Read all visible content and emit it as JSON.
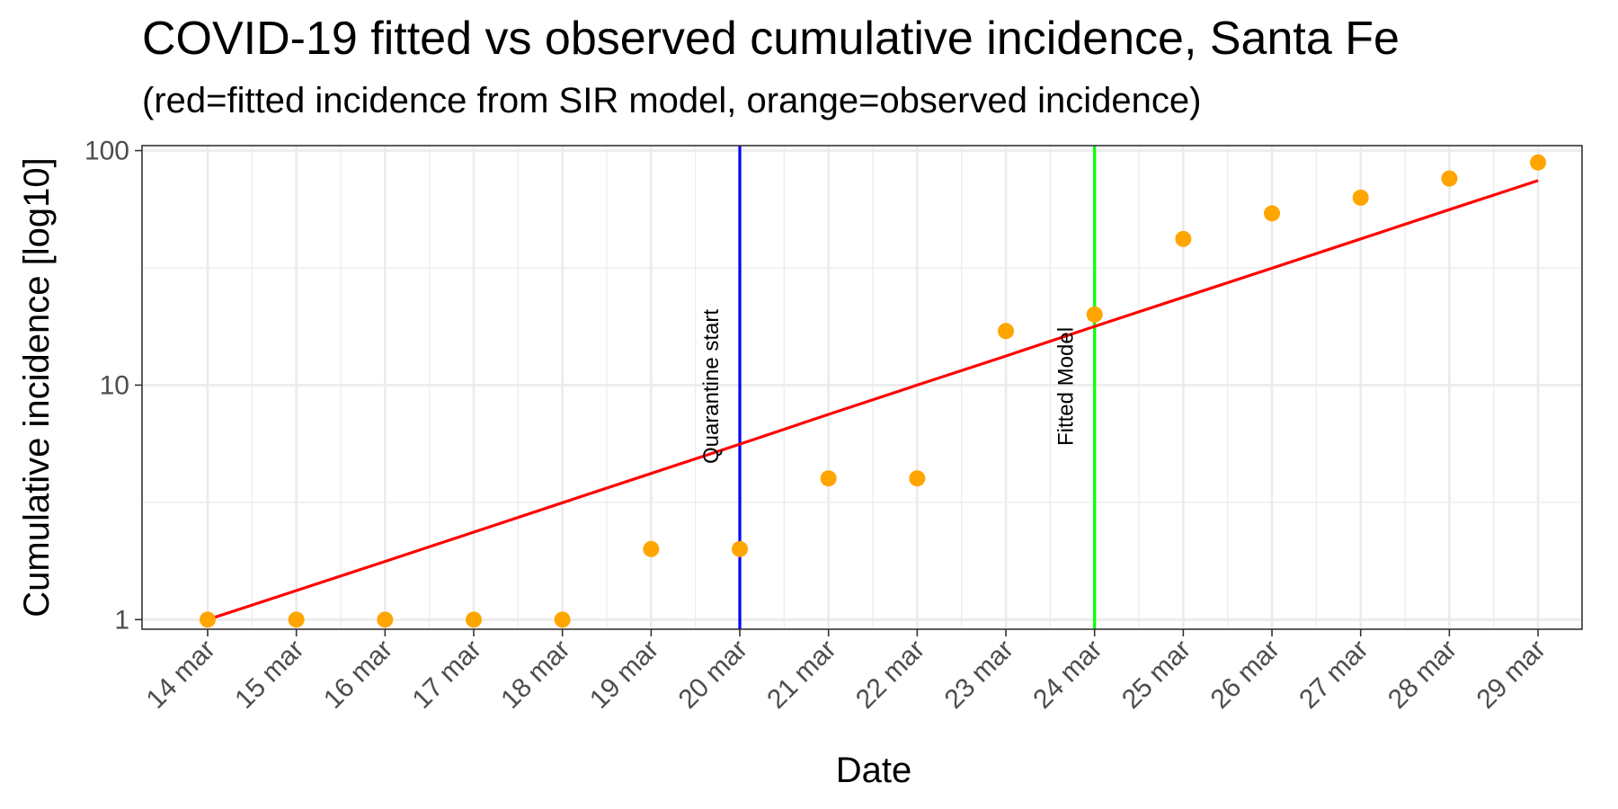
{
  "chart_data": {
    "type": "line",
    "title": "COVID-19 fitted vs observed cumulative incidence, Santa Fe",
    "subtitle": "(red=fitted incidence from SIR model, orange=observed incidence)",
    "xlabel": "Date",
    "ylabel": "Cumulative incidence [log10]",
    "y_scale": "log10",
    "ylim": [
      0.91,
      105
    ],
    "yticks": [
      1,
      10,
      100
    ],
    "ytick_labels": [
      "1",
      "10",
      "100"
    ],
    "categories": [
      "14 mar",
      "15 mar",
      "16 mar",
      "17 mar",
      "18 mar",
      "19 mar",
      "20 mar",
      "21 mar",
      "22 mar",
      "23 mar",
      "24 mar",
      "25 mar",
      "26 mar",
      "27 mar",
      "28 mar",
      "29 mar"
    ],
    "grid": true,
    "series": [
      {
        "name": "observed incidence",
        "kind": "points",
        "color": "#FFA500",
        "values": [
          1,
          1,
          1,
          1,
          1,
          2,
          2,
          4,
          4,
          17,
          20,
          42,
          54,
          63,
          76,
          89
        ]
      },
      {
        "name": "fitted incidence from SIR model",
        "kind": "line",
        "color": "#FF0000",
        "values": [
          1,
          1.33,
          1.77,
          2.36,
          3.15,
          4.2,
          5.6,
          7.5,
          10.0,
          13.3,
          17.8,
          23.7,
          31.5,
          42.0,
          56.0,
          74.5
        ]
      }
    ],
    "annotations": [
      {
        "label": "Quarantine start",
        "x": "20 mar",
        "color": "#0000FF"
      },
      {
        "label": "Fitted Model",
        "x": "24 mar",
        "color": "#00FF00"
      }
    ]
  }
}
